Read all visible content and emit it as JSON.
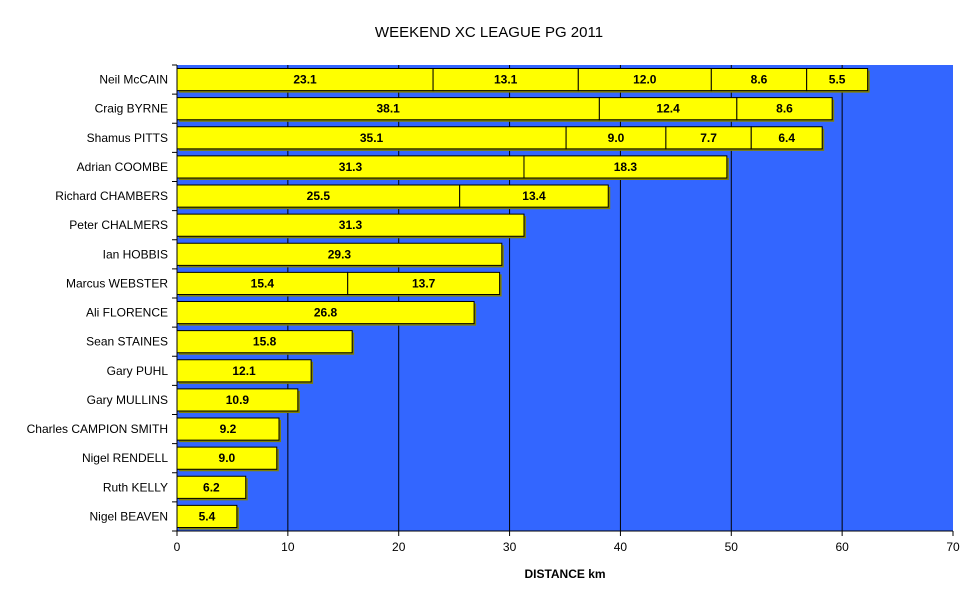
{
  "chart_data": {
    "type": "bar",
    "orientation": "horizontal",
    "stacked": true,
    "title": "WEEKEND XC LEAGUE PG 2011",
    "xlabel": "DISTANCE km",
    "ylabel": "",
    "xlim": [
      0,
      70
    ],
    "xticks": [
      0,
      10,
      20,
      30,
      40,
      50,
      60,
      70
    ],
    "grid": true,
    "plot_background": "#3366FF",
    "bar_color": "#FFFF00",
    "bar_shade_color": "#808000",
    "categories": [
      "Neil McCAIN",
      "Craig BYRNE",
      "Shamus PITTS",
      "Adrian COOMBE",
      "Richard CHAMBERS",
      "Peter CHALMERS",
      "Ian HOBBIS",
      "Marcus WEBSTER",
      "Ali FLORENCE",
      "Sean STAINES",
      "Gary PUHL",
      "Gary MULLINS",
      "Charles CAMPION SMITH",
      "Nigel RENDELL",
      "Ruth KELLY",
      "Nigel BEAVEN"
    ],
    "values": [
      [
        23.1,
        13.1,
        12.0,
        8.6,
        5.5
      ],
      [
        38.1,
        12.4,
        8.6
      ],
      [
        35.1,
        9.0,
        7.7,
        6.4
      ],
      [
        31.3,
        18.3
      ],
      [
        25.5,
        13.4
      ],
      [
        31.3
      ],
      [
        29.3
      ],
      [
        15.4,
        13.7
      ],
      [
        26.8
      ],
      [
        15.8
      ],
      [
        12.1
      ],
      [
        10.9
      ],
      [
        9.2
      ],
      [
        9.0
      ],
      [
        6.2
      ],
      [
        5.4
      ]
    ]
  }
}
